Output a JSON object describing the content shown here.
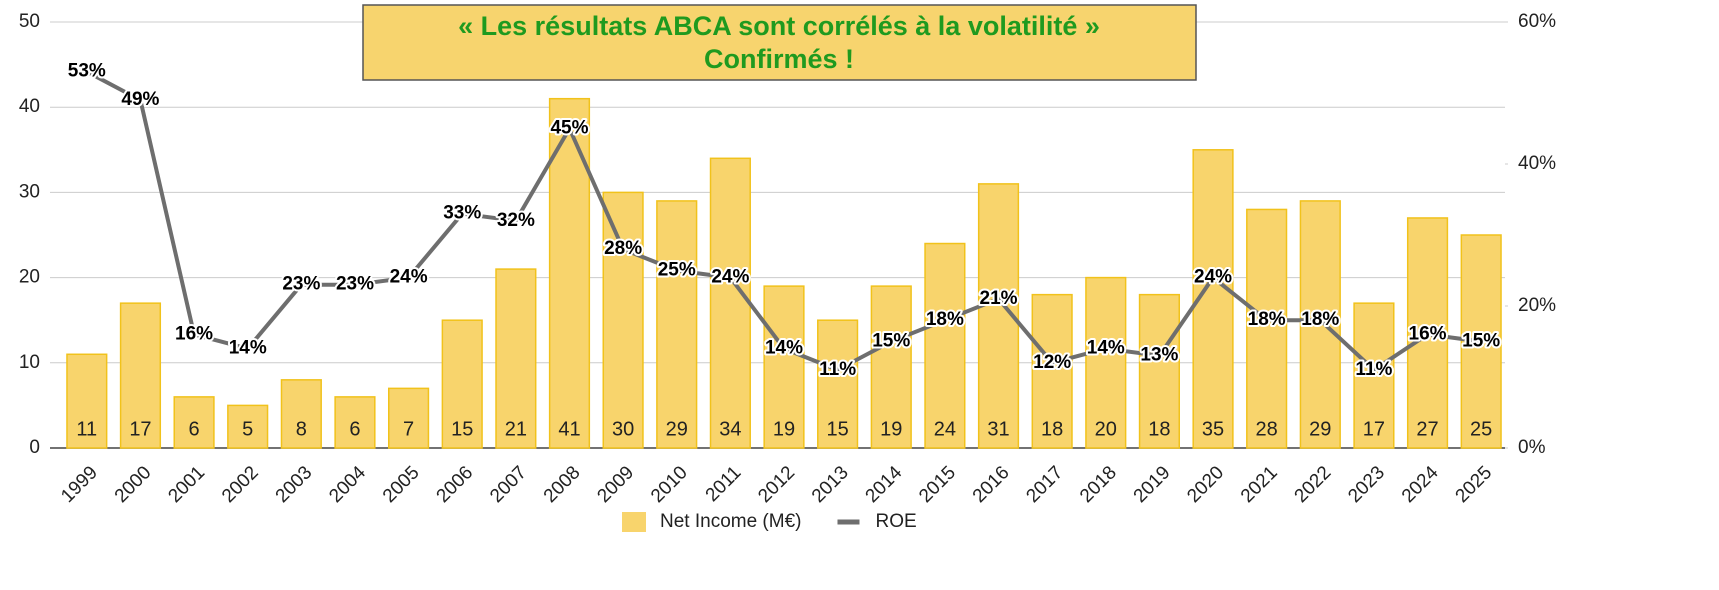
{
  "chart_data": {
    "type": "bar_line",
    "annotation": [
      "« Les résultats ABCA sont corrélés à la volatilité »",
      "Confirmés !"
    ],
    "categories": [
      "1999",
      "2000",
      "2001",
      "2002",
      "2003",
      "2004",
      "2005",
      "2006",
      "2007",
      "2008",
      "2009",
      "2010",
      "2011",
      "2012",
      "2013",
      "2014",
      "2015",
      "2016",
      "2017",
      "2018",
      "2019",
      "2020",
      "2021",
      "2022",
      "2023",
      "2024",
      "2025"
    ],
    "series": [
      {
        "name": "Net Income (M€)",
        "type": "bar",
        "color": "#f8d46c",
        "values": [
          11,
          17,
          6,
          5,
          8,
          6,
          7,
          15,
          21,
          41,
          30,
          29,
          34,
          19,
          15,
          19,
          24,
          31,
          18,
          20,
          18,
          35,
          28,
          29,
          17,
          27,
          25
        ]
      },
      {
        "name": "ROE",
        "type": "line",
        "axis": "y2",
        "color": "#6e6e6e",
        "values": [
          53,
          49,
          16,
          14,
          23,
          23,
          24,
          33,
          32,
          45,
          28,
          25,
          24,
          14,
          11,
          15,
          18,
          21,
          12,
          14,
          13,
          24,
          18,
          18,
          11,
          16,
          15
        ],
        "value_labels": [
          "53%",
          "49%",
          "16%",
          "14%",
          "23%",
          "23%",
          "24%",
          "33%",
          "32%",
          "45%",
          "28%",
          "25%",
          "24%",
          "14%",
          "11%",
          "15%",
          "18%",
          "21%",
          "12%",
          "14%",
          "13%",
          "24%",
          "18%",
          "18%",
          "11%",
          "16%",
          "15%"
        ]
      }
    ],
    "ylim": [
      0,
      50
    ],
    "yticks": [
      0,
      10,
      20,
      30,
      40,
      50
    ],
    "y2lim": [
      0,
      60
    ],
    "y2ticks": [
      {
        "value": 0,
        "label": "0%"
      },
      {
        "value": 20,
        "label": "20%"
      },
      {
        "value": 40,
        "label": "40%"
      },
      {
        "value": 60,
        "label": "60%"
      }
    ],
    "grid": true,
    "legend": "bottom"
  }
}
